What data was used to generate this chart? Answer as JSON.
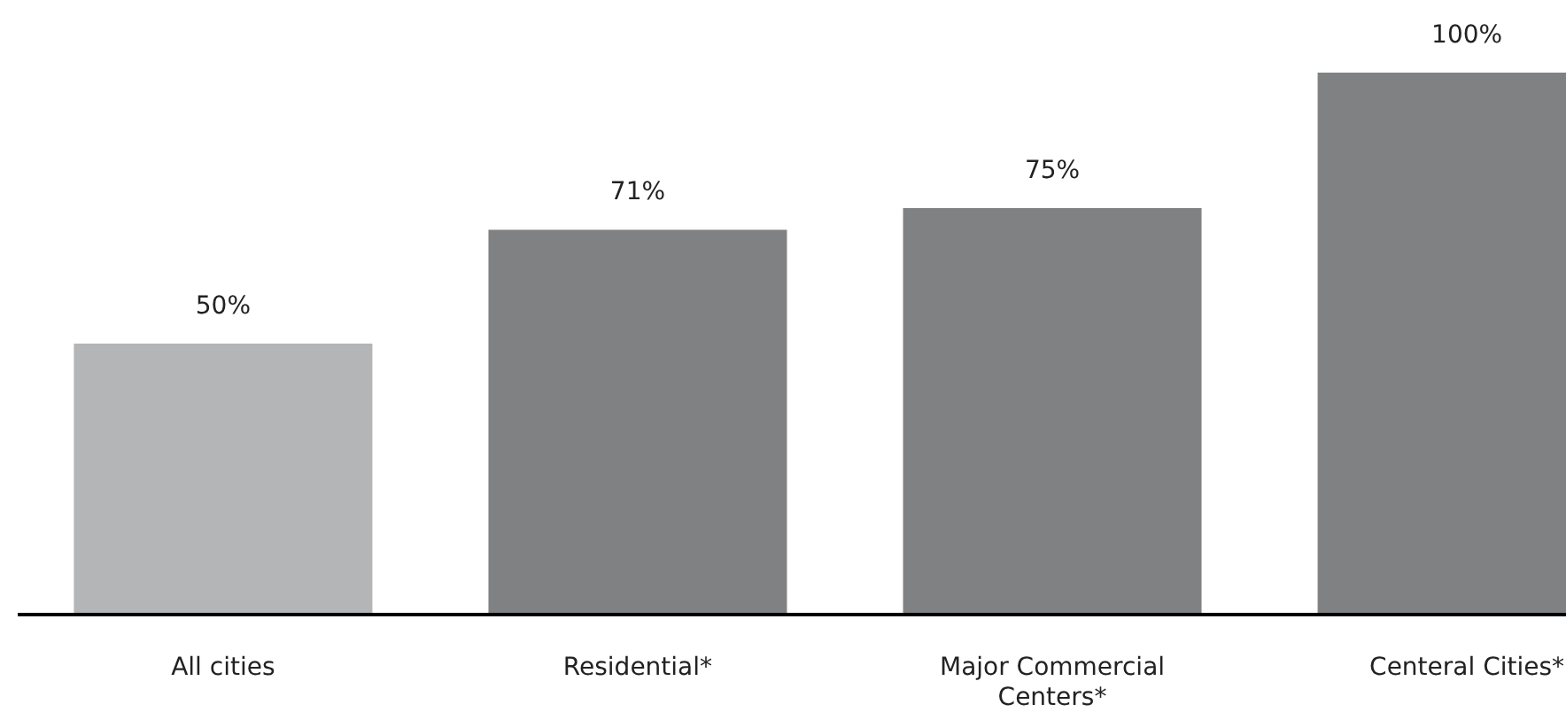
{
  "chart_data": {
    "type": "bar",
    "categories": [
      "All cities",
      "Residential*",
      "Major Commercial Centers*",
      "Centeral Cities*"
    ],
    "values": [
      50,
      71,
      75,
      100
    ],
    "colors": [
      "#b3b5b7",
      "#808183",
      "#808183",
      "#808183"
    ],
    "value_labels": [
      "50%",
      "71%",
      "75%",
      "100%"
    ]
  }
}
